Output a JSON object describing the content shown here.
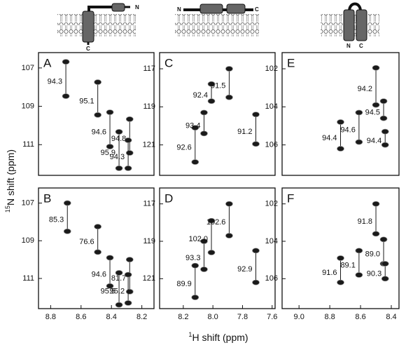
{
  "figure": {
    "y_label_mass": "15",
    "y_label": "N shift (ppm)",
    "x_label_mass": "1",
    "x_label": "H shift (ppm)",
    "cartoons": [
      {
        "n": "N",
        "c": "C"
      },
      {
        "n": "N",
        "c": "C"
      },
      {
        "n": "N",
        "c": "C"
      }
    ]
  },
  "chart_data": [
    {
      "type": "scatter",
      "panel": "A",
      "color": "#1a1a1a",
      "x": [
        8.7,
        8.49,
        8.41,
        8.35,
        8.28,
        8.29
      ],
      "y_upper": [
        106.68,
        107.74,
        109.31,
        110.33,
        109.67,
        110.77
      ],
      "y_lower": [
        108.47,
        109.45,
        111.1,
        112.23,
        111.43,
        112.23
      ],
      "values": [
        94.3,
        95.1,
        94.6,
        95.9,
        94.8,
        94.3
      ],
      "xlim": [
        8.88,
        8.12
      ],
      "ylim": [
        106.2,
        112.6
      ],
      "yticks": [
        107,
        109,
        111
      ]
    },
    {
      "type": "scatter",
      "panel": "C",
      "color": "#1a1a1a",
      "x": [
        8.12,
        8.06,
        8.01,
        7.89,
        7.71
      ],
      "y_upper": [
        120.1,
        119.3,
        117.8,
        117.0,
        119.4
      ],
      "y_lower": [
        121.9,
        120.4,
        118.7,
        118.5,
        120.95
      ],
      "values": [
        92.6,
        93.4,
        92.4,
        91.5,
        91.2
      ],
      "xlim": [
        8.36,
        7.58
      ],
      "ylim": [
        116.15,
        122.6
      ],
      "yticks": [
        117,
        119,
        121
      ]
    },
    {
      "type": "scatter",
      "panel": "E",
      "color": "#1a1a1a",
      "x": [
        8.73,
        8.61,
        8.5,
        8.45,
        8.44
      ],
      "y_upper": [
        104.8,
        104.3,
        101.95,
        103.7,
        105.3
      ],
      "y_lower": [
        106.2,
        105.85,
        103.9,
        104.6,
        106.0
      ],
      "values": [
        94.4,
        94.6,
        94.2,
        94.5,
        94.4
      ],
      "xlim": [
        9.11,
        8.35
      ],
      "ylim": [
        101.15,
        107.6
      ],
      "yticks": [
        102,
        104,
        106
      ]
    },
    {
      "type": "scatter",
      "panel": "B",
      "color": "#1a1a1a",
      "x": [
        8.69,
        8.49,
        8.41,
        8.35,
        8.28,
        8.29
      ],
      "y_upper": [
        107.0,
        108.25,
        109.9,
        110.7,
        110.0,
        110.8
      ],
      "y_lower": [
        108.5,
        109.6,
        111.4,
        112.4,
        111.7,
        112.3
      ],
      "values": [
        85.3,
        76.6,
        94.6,
        95.5,
        81.7,
        95.2
      ],
      "xlim": [
        8.88,
        8.12
      ],
      "ylim": [
        106.2,
        112.6
      ],
      "yticks": [
        107,
        109,
        111
      ],
      "xticks": [
        8.8,
        8.6,
        8.4,
        8.2
      ]
    },
    {
      "type": "scatter",
      "panel": "D",
      "color": "#1a1a1a",
      "x": [
        8.12,
        8.06,
        8.01,
        7.89,
        7.71
      ],
      "y_upper": [
        120.3,
        119.0,
        117.9,
        117.0,
        119.5
      ],
      "y_lower": [
        122.0,
        120.5,
        119.6,
        118.7,
        121.2
      ],
      "values": [
        89.9,
        93.3,
        102.0,
        102.6,
        92.9
      ],
      "value_labels": [
        "89.9",
        "93.3",
        "102.0",
        "102.6",
        "92.9"
      ],
      "xlim": [
        8.36,
        7.58
      ],
      "ylim": [
        116.15,
        122.6
      ],
      "yticks": [
        117,
        119,
        121
      ],
      "xticks": [
        8.2,
        {
          "value": 8,
          "label": "8.0"
        },
        7.8,
        7.6
      ]
    },
    {
      "type": "scatter",
      "panel": "F",
      "color": "#1a1a1a",
      "x": [
        8.73,
        8.61,
        8.5,
        8.45,
        8.44
      ],
      "y_upper": [
        104.9,
        104.5,
        102.0,
        103.9,
        105.2
      ],
      "y_lower": [
        106.2,
        105.8,
        103.6,
        105.2,
        106.0
      ],
      "values": [
        91.6,
        89.1,
        91.8,
        89.0,
        90.3
      ],
      "value_labels": [
        "91.6",
        "89.1",
        "91.8",
        "89.0",
        "90.3"
      ],
      "xlim": [
        9.11,
        8.35
      ],
      "ylim": [
        101.15,
        107.6
      ],
      "yticks": [
        102,
        104,
        106
      ],
      "xticks": [
        {
          "value": 9,
          "label": "9.0"
        },
        8.8,
        8.6,
        8.4
      ]
    }
  ]
}
